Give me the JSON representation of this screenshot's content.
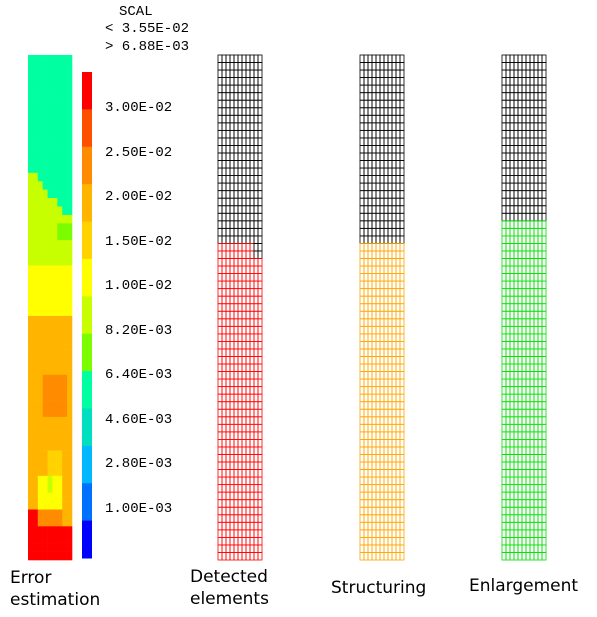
{
  "legend": {
    "title": "SCAL",
    "max_text": "< 3.55E-02",
    "min_text": "> 6.88E-03",
    "ticks": [
      "3.00E-02",
      "2.50E-02",
      "2.00E-02",
      "1.50E-02",
      "1.00E-02",
      "8.20E-03",
      "6.40E-03",
      "4.60E-03",
      "2.80E-03",
      "1.00E-03"
    ],
    "colors_top_to_bottom": [
      "#ff0000",
      "#ff5000",
      "#ff8c00",
      "#ffb400",
      "#ffd200",
      "#ffff00",
      "#c8ff00",
      "#7cfc00",
      "#00ffa0",
      "#00e0c0",
      "#00b8ff",
      "#0070ff",
      "#0000ff"
    ]
  },
  "captions": {
    "error": [
      "Error",
      "estimation"
    ],
    "detected": [
      "Detected",
      "elements"
    ],
    "structuring": "Structuring",
    "enlargement": "Enlargement"
  },
  "meshes": {
    "detected": {
      "base_color": "#000000",
      "highlight_color": "#ff0000"
    },
    "structuring": {
      "base_color": "#000000",
      "highlight_color": "#ffa500"
    },
    "enlargement": {
      "base_color": "#000000",
      "highlight_color": "#00e000"
    }
  }
}
